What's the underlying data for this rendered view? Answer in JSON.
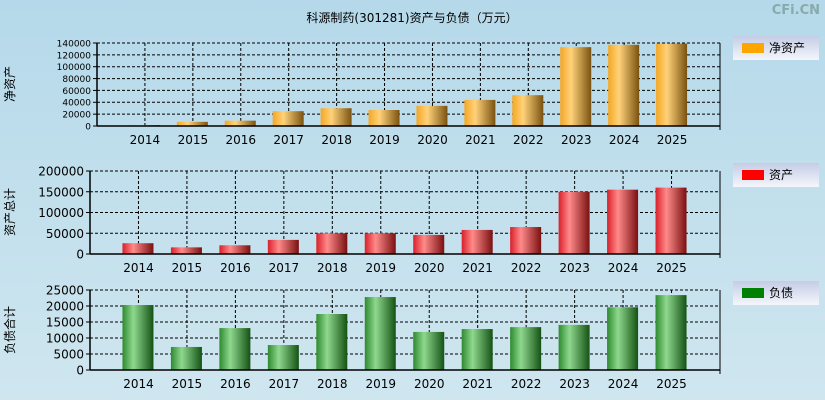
{
  "title": "科源制药(301281)资产与负债（万元）",
  "watermark": "CFi.CN",
  "chart_data": [
    {
      "type": "bar",
      "ylabel": "净资产",
      "legend": "净资产",
      "legend_placement": "right",
      "color": "#FFA500",
      "categories": [
        "2014",
        "2015",
        "2016",
        "2017",
        "2018",
        "2019",
        "2020",
        "2021",
        "2022",
        "2023",
        "2024",
        "2025"
      ],
      "values": [
        1500,
        7000,
        9000,
        25000,
        30000,
        27000,
        34000,
        44000,
        52000,
        133000,
        137000,
        139000
      ],
      "ylim": [
        0,
        140000
      ],
      "yticks": [
        0,
        20000,
        40000,
        60000,
        80000,
        100000,
        120000,
        140000
      ],
      "grid": true
    },
    {
      "type": "bar",
      "ylabel": "资产总计",
      "legend": "资产",
      "legend_placement": "right",
      "color": "#FF0000",
      "categories": [
        "2014",
        "2015",
        "2016",
        "2017",
        "2018",
        "2019",
        "2020",
        "2021",
        "2022",
        "2023",
        "2024",
        "2025"
      ],
      "values": [
        26000,
        16000,
        21000,
        34000,
        50000,
        50000,
        46000,
        58000,
        65000,
        150000,
        155000,
        160000
      ],
      "ylim": [
        0,
        200000
      ],
      "yticks": [
        0,
        50000,
        100000,
        150000,
        200000
      ],
      "grid": true
    },
    {
      "type": "bar",
      "ylabel": "负债合计",
      "legend": "负债",
      "legend_placement": "right",
      "color": "#008000",
      "categories": [
        "2014",
        "2015",
        "2016",
        "2017",
        "2018",
        "2019",
        "2020",
        "2021",
        "2022",
        "2023",
        "2024",
        "2025"
      ],
      "values": [
        20300,
        7200,
        13100,
        7800,
        17500,
        22800,
        11900,
        12800,
        13400,
        14100,
        19600,
        23400
      ],
      "ylim": [
        0,
        25000
      ],
      "yticks": [
        0,
        5000,
        10000,
        15000,
        20000,
        25000
      ],
      "grid": true
    }
  ]
}
